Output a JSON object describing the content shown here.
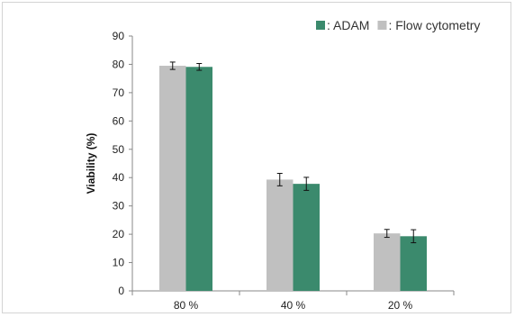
{
  "chart_data": {
    "type": "bar",
    "ylabel": "Viability (%)",
    "xlabel": "",
    "title": "",
    "ylim": [
      0,
      90
    ],
    "yticks": [
      0,
      10,
      20,
      30,
      40,
      50,
      60,
      70,
      80,
      90
    ],
    "categories": [
      "80 %",
      "40 %",
      "20 %"
    ],
    "series": [
      {
        "name": ": Flow cytometry",
        "color": "#c0c0c0",
        "values": [
          79.5,
          39.3,
          20.3
        ],
        "errors": [
          1.3,
          2.2,
          1.4
        ]
      },
      {
        "name": ": ADAM",
        "color": "#3b8a6d",
        "values": [
          79.1,
          37.8,
          19.3
        ],
        "errors": [
          1.2,
          2.3,
          2.3
        ]
      }
    ],
    "legend_order": [
      1,
      0
    ],
    "legend_position": "top-right",
    "grid": false
  }
}
